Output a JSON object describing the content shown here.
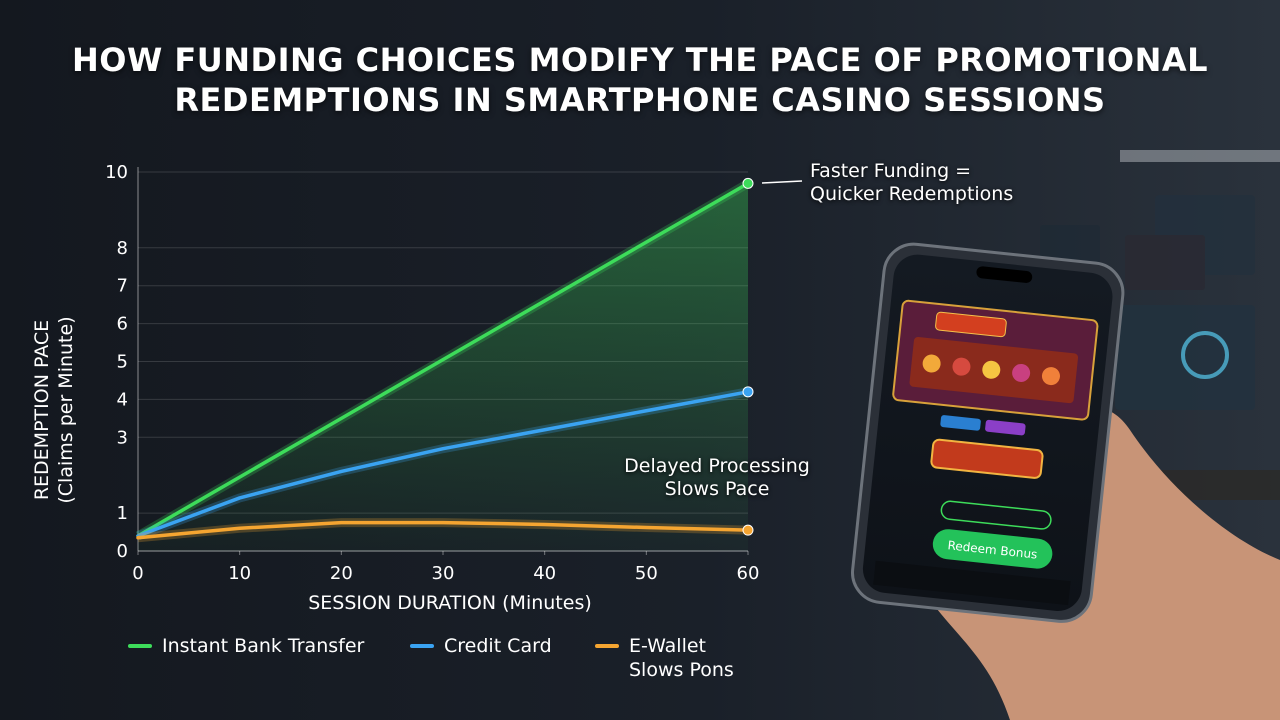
{
  "chart_data": {
    "type": "line",
    "title": "HOW FUNDING CHOICES MODIFY THE PACE OF PROMOTIONAL REDEMPTIONS IN SMARTPHONE CASINO SESSIONS",
    "x_label": "SESSION DURATION (Minutes)",
    "y_label": "REDEMPTION PACE (Claims per Minute)",
    "x": [
      0,
      10,
      20,
      30,
      40,
      50,
      60
    ],
    "series": [
      {
        "name": "Instant Bank Transfer",
        "color": "#3ddc5a",
        "values": [
          0.4,
          1.95,
          3.5,
          5.05,
          6.6,
          8.15,
          9.7
        ]
      },
      {
        "name": "Credit Card",
        "color": "#3aa3f2",
        "values": [
          0.4,
          1.4,
          2.1,
          2.7,
          3.2,
          3.7,
          4.2
        ]
      },
      {
        "name": "E-Wallet Slows Pons",
        "color": "#f5a531",
        "values": [
          0.35,
          0.6,
          0.75,
          0.75,
          0.7,
          0.62,
          0.55
        ]
      }
    ],
    "xlim": [
      0,
      60
    ],
    "xticks": [
      0,
      10,
      20,
      30,
      40,
      50,
      60
    ],
    "ylim": [
      0,
      10
    ],
    "yticks": [
      0,
      1,
      3,
      4,
      5,
      6,
      7,
      8,
      10
    ],
    "grid": true,
    "annotations": [
      "Faster Funding = Quicker Redemptions",
      "Delayed Processing Slows Pace"
    ]
  },
  "phone": {
    "button_label": "Redeem Bonus"
  }
}
